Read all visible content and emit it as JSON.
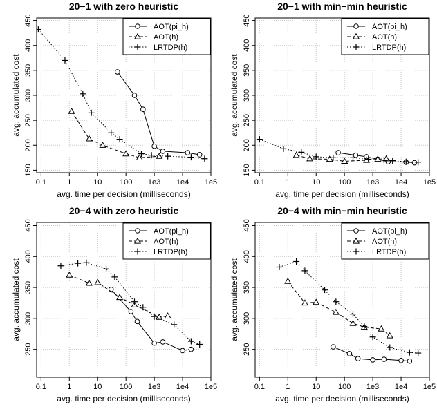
{
  "chart_data": [
    {
      "type": "line",
      "title": "20−1 with zero heuristic",
      "xlabel": "avg. time per decision (milliseconds)",
      "ylabel": "avg. accumulated cost",
      "xscale": "log",
      "xlim": [
        0.07,
        100000
      ],
      "ylim": [
        145,
        455
      ],
      "xticks": [
        "0.1",
        "1",
        "10",
        "100",
        "1e3",
        "1e4",
        "1e5"
      ],
      "yticks": [
        "150",
        "200",
        "250",
        "300",
        "350",
        "400",
        "450"
      ],
      "grid": true,
      "legend": "top-right",
      "series": [
        {
          "name": "AOT(pi_h)",
          "marker": "circle",
          "line": "solid",
          "points": [
            [
              50,
              347
            ],
            [
              200,
              300
            ],
            [
              400,
              272
            ],
            [
              1000,
              198
            ],
            [
              2000,
              188
            ],
            [
              15000,
              185
            ],
            [
              40000,
              181
            ]
          ]
        },
        {
          "name": "AOT(h)",
          "marker": "triangle",
          "line": "dashed",
          "points": [
            [
              1.2,
              268
            ],
            [
              5,
              213
            ],
            [
              15,
              200
            ],
            [
              100,
              183
            ],
            [
              300,
              175
            ],
            [
              1500,
              178
            ]
          ]
        },
        {
          "name": "LRTDP(h)",
          "marker": "plus",
          "line": "dotted",
          "points": [
            [
              0.08,
              432
            ],
            [
              0.7,
              370
            ],
            [
              3,
              303
            ],
            [
              6,
              265
            ],
            [
              30,
              225
            ],
            [
              60,
              212
            ],
            [
              350,
              183
            ],
            [
              800,
              180
            ],
            [
              3000,
              178
            ],
            [
              20000,
              176
            ],
            [
              60000,
              173
            ]
          ]
        }
      ]
    },
    {
      "type": "line",
      "title": "20−1 with min−min heuristic",
      "xlabel": "avg. time per decision (milliseconds)",
      "ylabel": "avg. accumulated cost",
      "xscale": "log",
      "xlim": [
        0.07,
        100000
      ],
      "ylim": [
        145,
        455
      ],
      "xticks": [
        "0.1",
        "1",
        "10",
        "100",
        "1e3",
        "1e4",
        "1e5"
      ],
      "yticks": [
        "150",
        "200",
        "250",
        "300",
        "350",
        "400",
        "450"
      ],
      "grid": true,
      "legend": "top-right",
      "series": [
        {
          "name": "AOT(pi_h)",
          "marker": "circle",
          "line": "solid",
          "points": [
            [
              60,
              185
            ],
            [
              250,
              180
            ],
            [
              600,
              177
            ],
            [
              1500,
              172
            ],
            [
              3500,
              167
            ],
            [
              15000,
              166
            ],
            [
              30000,
              165
            ]
          ]
        },
        {
          "name": "AOT(h)",
          "marker": "triangle",
          "line": "dashed",
          "points": [
            [
              2,
              180
            ],
            [
              6,
              173
            ],
            [
              30,
              172
            ],
            [
              100,
              168
            ],
            [
              600,
              170
            ],
            [
              1500,
              172
            ],
            [
              3000,
              173
            ]
          ]
        },
        {
          "name": "LRTDP(h)",
          "marker": "plus",
          "line": "dotted",
          "points": [
            [
              0.1,
              212
            ],
            [
              0.7,
              193
            ],
            [
              3,
              186
            ],
            [
              10,
              177
            ],
            [
              40,
              175
            ],
            [
              200,
              175
            ],
            [
              700,
              172
            ],
            [
              2500,
              170
            ],
            [
              5000,
              169
            ],
            [
              15000,
              167
            ],
            [
              40000,
              166
            ]
          ]
        }
      ]
    },
    {
      "type": "line",
      "title": "20−4 with zero heuristic",
      "xlabel": "avg. time per decision (milliseconds)",
      "ylabel": "avg. accumulated cost",
      "xscale": "log",
      "xlim": [
        0.07,
        100000
      ],
      "ylim": [
        205,
        455
      ],
      "xticks": [
        "0.1",
        "1",
        "10",
        "100",
        "1e3",
        "1e4",
        "1e5"
      ],
      "yticks": [
        "250",
        "300",
        "350",
        "400",
        "450"
      ],
      "grid": true,
      "legend": "top-right",
      "series": [
        {
          "name": "AOT(pi_h)",
          "marker": "circle",
          "line": "solid",
          "points": [
            [
              30,
              347
            ],
            [
              150,
              311
            ],
            [
              250,
              295
            ],
            [
              1000,
              260
            ],
            [
              2000,
              262
            ],
            [
              10000,
              248
            ],
            [
              20000,
              250
            ]
          ]
        },
        {
          "name": "AOT(h)",
          "marker": "triangle",
          "line": "dashed",
          "points": [
            [
              1,
              370
            ],
            [
              5,
              357
            ],
            [
              10,
              358
            ],
            [
              60,
              334
            ],
            [
              200,
              322
            ],
            [
              1500,
              302
            ],
            [
              3000,
              304
            ]
          ]
        },
        {
          "name": "LRTDP(h)",
          "marker": "plus",
          "line": "dotted",
          "points": [
            [
              0.5,
              385
            ],
            [
              2,
              389
            ],
            [
              4,
              390
            ],
            [
              20,
              380
            ],
            [
              40,
              367
            ],
            [
              200,
              327
            ],
            [
              400,
              318
            ],
            [
              1000,
              303
            ],
            [
              5000,
              290
            ],
            [
              20000,
              263
            ],
            [
              40000,
              258
            ]
          ]
        }
      ]
    },
    {
      "type": "line",
      "title": "20−4 with min−min heuristic",
      "xlabel": "avg. time per decision (milliseconds)",
      "ylabel": "avg. accumulated cost",
      "xscale": "log",
      "xlim": [
        0.07,
        100000
      ],
      "ylim": [
        205,
        455
      ],
      "xticks": [
        "0.1",
        "1",
        "10",
        "100",
        "1e3",
        "1e4",
        "1e5"
      ],
      "yticks": [
        "250",
        "300",
        "350",
        "400",
        "450"
      ],
      "grid": true,
      "legend": "top-right",
      "series": [
        {
          "name": "AOT(pi_h)",
          "marker": "circle",
          "line": "solid",
          "points": [
            [
              40,
              254
            ],
            [
              150,
              243
            ],
            [
              300,
              235
            ],
            [
              1000,
              233
            ],
            [
              2500,
              234
            ],
            [
              10000,
              232
            ],
            [
              20000,
              231
            ]
          ]
        },
        {
          "name": "AOT(h)",
          "marker": "triangle",
          "line": "dashed",
          "points": [
            [
              1,
              360
            ],
            [
              4,
              325
            ],
            [
              10,
              326
            ],
            [
              50,
              310
            ],
            [
              200,
              292
            ],
            [
              500,
              286
            ],
            [
              2000,
              283
            ],
            [
              4000,
              272
            ]
          ]
        },
        {
          "name": "LRTDP(h)",
          "marker": "plus",
          "line": "dotted",
          "points": [
            [
              0.5,
              383
            ],
            [
              2,
              392
            ],
            [
              4,
              377
            ],
            [
              20,
              346
            ],
            [
              50,
              327
            ],
            [
              200,
              307
            ],
            [
              500,
              287
            ],
            [
              1000,
              270
            ],
            [
              4000,
              253
            ],
            [
              20000,
              245
            ],
            [
              40000,
              244
            ]
          ]
        }
      ]
    }
  ]
}
